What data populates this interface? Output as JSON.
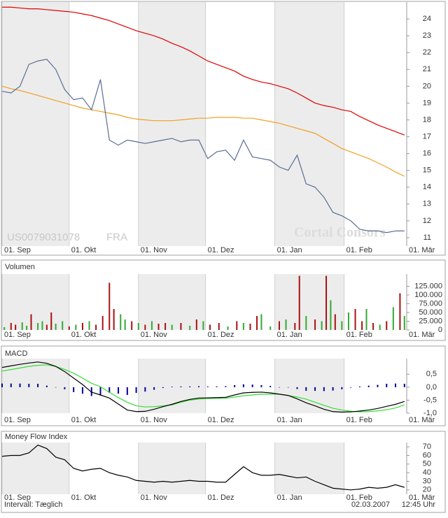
{
  "chart_data": [
    {
      "type": "line",
      "id_label": "US0079031078",
      "exchange": "FRA",
      "watermark": "Cortal Consors",
      "x": [
        0,
        4,
        8,
        12,
        16,
        20,
        24,
        28,
        32,
        36,
        40,
        44,
        48,
        52,
        56,
        60,
        64,
        68,
        72,
        76,
        80,
        84,
        88,
        92,
        96,
        100,
        104,
        108,
        112,
        116,
        120,
        124,
        128,
        132,
        136,
        140,
        144,
        148,
        152,
        156,
        160,
        164,
        168,
        172,
        176,
        180
      ],
      "xlim": [
        0,
        181
      ],
      "xticks": [
        {
          "value": 0,
          "label": "01. Sep"
        },
        {
          "value": 30,
          "label": "01. Okt"
        },
        {
          "value": 61,
          "label": "01. Nov"
        },
        {
          "value": 91,
          "label": "01. Dez"
        },
        {
          "value": 122,
          "label": "01. Jan"
        },
        {
          "value": 153,
          "label": "01. Feb"
        },
        {
          "value": 181,
          "label": "01. Mär"
        }
      ],
      "ylim": [
        10.5,
        25
      ],
      "yticks": [
        11,
        12,
        13,
        14,
        15,
        16,
        17,
        18,
        19,
        20,
        21,
        22,
        23,
        24
      ],
      "series": [
        {
          "color": "#e00000",
          "values": [
            24.7,
            24.7,
            24.65,
            24.6,
            24.6,
            24.55,
            24.5,
            24.45,
            24.4,
            24.3,
            24.2,
            24.05,
            23.9,
            23.7,
            23.5,
            23.3,
            23.15,
            23.0,
            22.8,
            22.55,
            22.35,
            22.1,
            21.8,
            21.5,
            21.3,
            21.1,
            20.9,
            20.6,
            20.4,
            20.25,
            20.15,
            20.0,
            19.85,
            19.6,
            19.3,
            19.0,
            18.85,
            18.75,
            18.6,
            18.5,
            18.2,
            17.95,
            17.7,
            17.5,
            17.3,
            17.1
          ]
        },
        {
          "color": "#f0a020",
          "values": [
            20.0,
            19.85,
            19.75,
            19.6,
            19.45,
            19.3,
            19.15,
            19.0,
            18.85,
            18.7,
            18.6,
            18.5,
            18.4,
            18.3,
            18.15,
            18.05,
            18.0,
            17.95,
            17.95,
            17.95,
            18.0,
            18.05,
            18.1,
            18.1,
            18.15,
            18.15,
            18.15,
            18.1,
            18.1,
            18.0,
            17.9,
            17.8,
            17.65,
            17.5,
            17.35,
            17.2,
            16.9,
            16.6,
            16.3,
            16.1,
            15.9,
            15.7,
            15.45,
            15.2,
            14.9,
            14.65
          ]
        },
        {
          "color": "#5a6e96",
          "values": [
            19.7,
            19.6,
            20.0,
            21.3,
            21.5,
            21.6,
            21.0,
            19.8,
            19.2,
            19.3,
            18.6,
            20.4,
            16.8,
            16.5,
            16.8,
            16.7,
            16.6,
            16.7,
            16.8,
            16.9,
            16.7,
            16.8,
            16.8,
            15.7,
            16.1,
            16.2,
            15.6,
            16.8,
            15.8,
            15.7,
            15.6,
            15.2,
            15.0,
            15.9,
            14.2,
            14.0,
            13.4,
            12.5,
            12.3,
            12.0,
            11.5,
            11.4,
            11.4,
            11.3,
            11.4,
            11.4
          ]
        }
      ]
    },
    {
      "type": "bar",
      "title": "Volumen",
      "x": [
        1,
        4,
        6,
        9,
        11,
        13,
        16,
        18,
        20,
        22,
        24,
        27,
        30,
        33,
        36,
        39,
        42,
        45,
        48,
        50,
        53,
        55,
        58,
        61,
        64,
        67,
        70,
        73,
        76,
        80,
        84,
        87,
        90,
        93,
        97,
        101,
        105,
        108,
        111,
        114,
        116,
        120,
        124,
        127,
        131,
        133,
        136,
        140,
        143,
        145,
        147,
        149,
        152,
        155,
        158,
        161,
        163,
        166,
        169,
        172,
        175,
        178,
        180
      ],
      "values": [
        8000,
        20000,
        15000,
        22000,
        12000,
        45000,
        20000,
        25000,
        15000,
        50000,
        18000,
        25000,
        10000,
        15000,
        20000,
        25000,
        15000,
        40000,
        135000,
        60000,
        45000,
        30000,
        25000,
        20000,
        15000,
        25000,
        18000,
        20000,
        15000,
        20000,
        12000,
        30000,
        25000,
        15000,
        20000,
        10000,
        25000,
        20000,
        18000,
        40000,
        45000,
        10000,
        25000,
        30000,
        20000,
        155000,
        40000,
        30000,
        25000,
        155000,
        85000,
        45000,
        25000,
        50000,
        60000,
        25000,
        60000,
        20000,
        15000,
        25000,
        65000,
        105000,
        40000
      ],
      "colors": [
        "#33aa33",
        "#aa1111",
        "#aa1111",
        "#33aa33",
        "#33aa33",
        "#aa1111",
        "#33aa33",
        "#33aa33",
        "#aa1111",
        "#aa1111",
        "#33aa33",
        "#33aa33",
        "#aa1111",
        "#33aa33",
        "#aa1111",
        "#33aa33",
        "#aa1111",
        "#aa1111",
        "#aa1111",
        "#aa1111",
        "#33aa33",
        "#33aa33",
        "#aa1111",
        "#33aa33",
        "#aa1111",
        "#33aa33",
        "#aa1111",
        "#aa1111",
        "#33aa33",
        "#aa1111",
        "#33aa33",
        "#aa1111",
        "#33aa33",
        "#aa1111",
        "#aa1111",
        "#33aa33",
        "#aa1111",
        "#33aa33",
        "#aa1111",
        "#aa1111",
        "#33aa33",
        "#33aa33",
        "#aa1111",
        "#33aa33",
        "#aa1111",
        "#aa1111",
        "#33aa33",
        "#aa1111",
        "#33aa33",
        "#aa1111",
        "#33aa33",
        "#aa1111",
        "#33aa33",
        "#33aa33",
        "#aa1111",
        "#aa1111",
        "#33aa33",
        "#aa1111",
        "#33aa33",
        "#aa1111",
        "#33aa33",
        "#aa1111",
        "#33aa33"
      ],
      "xlim": [
        0,
        181
      ],
      "xticks": [
        {
          "value": 0,
          "label": "01. Sep"
        },
        {
          "value": 30,
          "label": "01. Okt"
        },
        {
          "value": 61,
          "label": "01. Nov"
        },
        {
          "value": 91,
          "label": "01. Dez"
        },
        {
          "value": 122,
          "label": "01. Jan"
        },
        {
          "value": 153,
          "label": "01. Feb"
        },
        {
          "value": 181,
          "label": "01. Mär"
        }
      ],
      "ylim": [
        0,
        160000
      ],
      "yticks": [
        0,
        {
          "value": 25000,
          "label": "25.000"
        },
        {
          "value": 50000,
          "label": "50.000"
        },
        {
          "value": 75000,
          "label": "75.000"
        },
        {
          "value": 100000,
          "label": "100.000"
        },
        {
          "value": 125000,
          "label": "125.000"
        }
      ]
    },
    {
      "type": "line",
      "title": "MACD",
      "x": [
        0,
        4,
        8,
        12,
        16,
        20,
        24,
        28,
        32,
        36,
        40,
        44,
        48,
        52,
        56,
        60,
        64,
        68,
        72,
        76,
        80,
        84,
        88,
        92,
        96,
        100,
        104,
        108,
        112,
        116,
        120,
        124,
        128,
        132,
        136,
        140,
        144,
        148,
        152,
        156,
        160,
        164,
        168,
        172,
        176,
        180
      ],
      "xlim": [
        0,
        181
      ],
      "xticks": [
        {
          "value": 0,
          "label": "01. Sep"
        },
        {
          "value": 30,
          "label": "01. Okt"
        },
        {
          "value": 61,
          "label": "01. Nov"
        },
        {
          "value": 91,
          "label": "01. Dez"
        },
        {
          "value": 122,
          "label": "01. Jan"
        },
        {
          "value": 153,
          "label": "01. Feb"
        },
        {
          "value": 181,
          "label": "01. Mär"
        }
      ],
      "ylim": [
        -1.0,
        1.1
      ],
      "yticks": [
        {
          "value": 0.5,
          "label": "0,5"
        },
        {
          "value": 0,
          "label": "0,0"
        },
        {
          "value": -0.5,
          "label": "-0,5"
        },
        {
          "value": -1,
          "label": "-1,0"
        }
      ],
      "series": [
        {
          "type": "bar",
          "color": "#000099",
          "values": [
            0.14,
            0.14,
            0.14,
            0.13,
            0.13,
            0.06,
            0,
            -0.08,
            -0.19,
            -0.25,
            -0.34,
            -0.32,
            -0.22,
            -0.25,
            -0.3,
            -0.22,
            -0.17,
            -0.1,
            -0.03,
            0.02,
            0.03,
            0.03,
            0.04,
            0.03,
            0.03,
            0.04,
            0.08,
            0.11,
            0.1,
            0.08,
            0.05,
            0,
            0,
            -0.07,
            -0.14,
            -0.14,
            -0.15,
            -0.13,
            -0.08,
            -0.02,
            0.03,
            0.06,
            0.09,
            0.13,
            0.14,
            0.13
          ]
        },
        {
          "type": "line",
          "color": "#33dd33",
          "values": [
            0.62,
            0.68,
            0.74,
            0.8,
            0.84,
            0.86,
            0.8,
            0.68,
            0.54,
            0.35,
            0.15,
            0.02,
            -0.2,
            -0.4,
            -0.58,
            -0.72,
            -0.76,
            -0.75,
            -0.72,
            -0.68,
            -0.58,
            -0.5,
            -0.46,
            -0.44,
            -0.43,
            -0.43,
            -0.38,
            -0.33,
            -0.3,
            -0.27,
            -0.27,
            -0.27,
            -0.32,
            -0.38,
            -0.46,
            -0.58,
            -0.7,
            -0.81,
            -0.88,
            -0.93,
            -0.95,
            -0.94,
            -0.91,
            -0.87,
            -0.8,
            -0.68
          ]
        },
        {
          "type": "line",
          "color": "#000000",
          "values": [
            0.76,
            0.82,
            0.88,
            0.93,
            0.97,
            0.92,
            0.8,
            0.6,
            0.35,
            0.1,
            -0.19,
            -0.3,
            -0.42,
            -0.65,
            -0.88,
            -0.94,
            -0.93,
            -0.85,
            -0.75,
            -0.66,
            -0.55,
            -0.47,
            -0.42,
            -0.41,
            -0.4,
            -0.39,
            -0.3,
            -0.22,
            -0.2,
            -0.19,
            -0.22,
            -0.27,
            -0.32,
            -0.45,
            -0.6,
            -0.72,
            -0.85,
            -0.94,
            -0.96,
            -0.95,
            -0.92,
            -0.88,
            -0.82,
            -0.74,
            -0.66,
            -0.55
          ]
        }
      ]
    },
    {
      "type": "line",
      "title": "Money Flow Index",
      "x": [
        0,
        4,
        8,
        12,
        16,
        20,
        24,
        28,
        32,
        36,
        40,
        44,
        48,
        52,
        56,
        60,
        64,
        68,
        72,
        76,
        80,
        84,
        88,
        92,
        96,
        100,
        104,
        108,
        112,
        116,
        120,
        124,
        128,
        132,
        136,
        140,
        144,
        148,
        152,
        156,
        160,
        164,
        168,
        172,
        176,
        180
      ],
      "xlim": [
        0,
        181
      ],
      "xticks": [
        {
          "value": 0,
          "label": "01. Sep"
        },
        {
          "value": 30,
          "label": "01. Okt"
        },
        {
          "value": 61,
          "label": "01. Nov"
        },
        {
          "value": 91,
          "label": "01. Dez"
        },
        {
          "value": 122,
          "label": "01. Jan"
        },
        {
          "value": 153,
          "label": "01. Feb"
        },
        {
          "value": 181,
          "label": "01. Mär"
        }
      ],
      "ylim": [
        15,
        75
      ],
      "yticks": [
        20,
        30,
        40,
        50,
        60,
        70
      ],
      "series": [
        {
          "color": "#000000",
          "values": [
            59,
            60,
            60,
            63,
            72,
            68,
            58,
            55,
            45,
            42,
            44,
            45,
            40,
            37,
            35,
            31,
            30,
            29,
            30,
            29,
            30,
            31,
            30,
            30,
            29,
            29,
            38,
            47,
            40,
            37,
            37,
            38,
            36,
            34,
            35,
            30,
            26,
            22,
            21,
            20,
            21,
            23,
            22,
            23,
            26,
            23
          ]
        }
      ]
    }
  ],
  "footer": {
    "interval": "Intervall: Tæglich",
    "date": "02.03.2007",
    "time": "12:45 Uhr"
  }
}
